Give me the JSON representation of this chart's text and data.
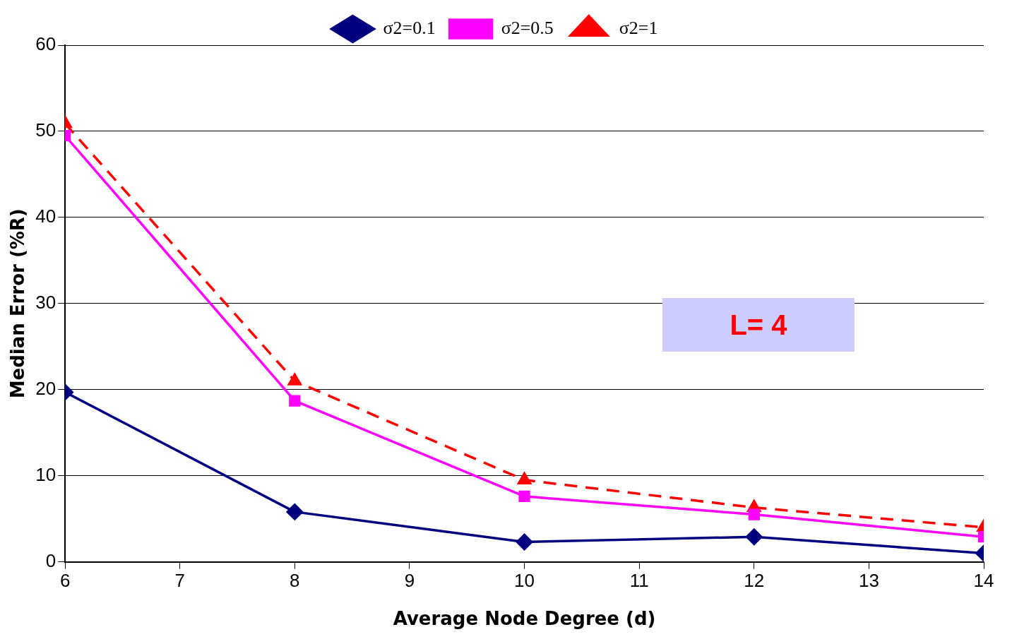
{
  "chart_data": {
    "type": "line",
    "xlabel": "Average Node Degree (d)",
    "ylabel": "Median Error (%R)",
    "x": [
      6,
      8,
      10,
      12,
      14
    ],
    "xlim": [
      6,
      14
    ],
    "xticks": [
      6,
      7,
      8,
      9,
      10,
      11,
      12,
      13,
      14
    ],
    "ylim": [
      0,
      60
    ],
    "yticks": [
      0,
      10,
      20,
      30,
      40,
      50,
      60
    ],
    "grid": "y",
    "legend": "top",
    "annotations": [
      "L= 4"
    ],
    "series": [
      {
        "name": "σ2=0.1",
        "color": "#000080",
        "marker": "diamond",
        "line_style": "solid",
        "values": [
          19.7,
          5.8,
          2.3,
          2.9,
          1.0
        ]
      },
      {
        "name": "σ2=0.5",
        "color": "#ff00ff",
        "marker": "square",
        "line_style": "solid",
        "values": [
          49.5,
          18.7,
          7.6,
          5.5,
          2.9
        ]
      },
      {
        "name": "σ2=1",
        "color": "#ff0000",
        "marker": "triangle",
        "line_style": "dashed",
        "values": [
          50.9,
          21.0,
          9.5,
          6.3,
          4.0
        ]
      }
    ]
  }
}
